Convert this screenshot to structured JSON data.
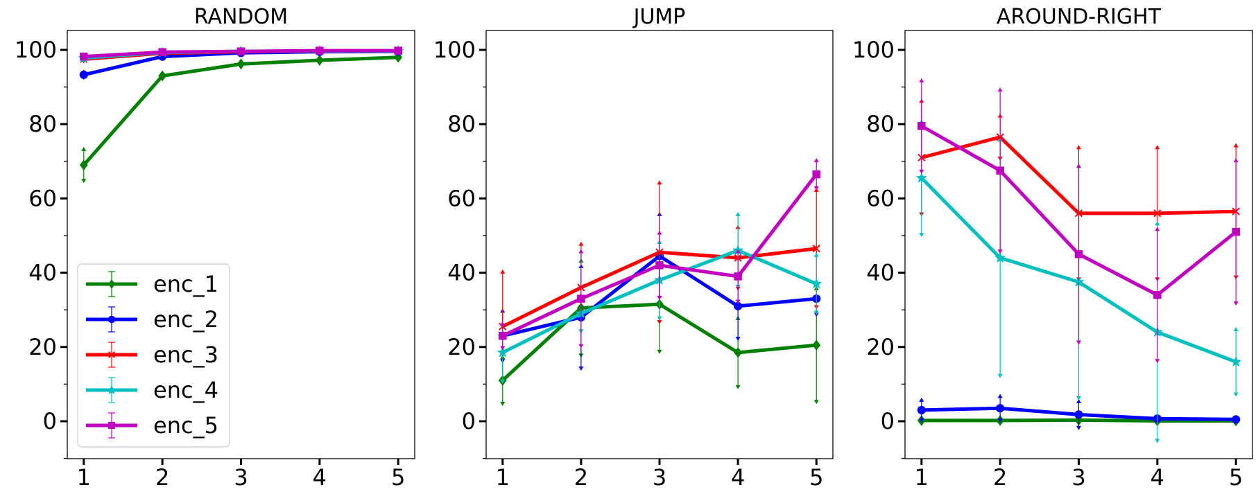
{
  "chart_data": [
    {
      "type": "line",
      "title": "RANDOM",
      "x": [
        1,
        2,
        3,
        4,
        5
      ],
      "xticks": [
        "1",
        "2",
        "3",
        "4",
        "5"
      ],
      "yticks": [
        "0",
        "20",
        "40",
        "60",
        "80",
        "100"
      ],
      "ylim": [
        -10,
        105
      ],
      "legend": "lower-left",
      "series": [
        {
          "name": "enc_1",
          "color": "#008000",
          "marker": "diamond",
          "values": [
            69,
            93,
            96.2,
            97.2,
            98
          ],
          "err": [
            4.5,
            1,
            0.5,
            0.5,
            0.4
          ]
        },
        {
          "name": "enc_2",
          "color": "#0000ff",
          "marker": "circle",
          "values": [
            93.3,
            98.2,
            99.2,
            99.5,
            99.6
          ],
          "err": [
            1,
            0.6,
            0.3,
            0.2,
            0.2
          ]
        },
        {
          "name": "enc_3",
          "color": "#ff0000",
          "marker": "x",
          "values": [
            97.5,
            99.1,
            99.5,
            99.7,
            99.7
          ],
          "err": [
            0.8,
            0.3,
            0.2,
            0.2,
            0.2
          ]
        },
        {
          "name": "enc_4",
          "color": "#00bfbf",
          "marker": "star",
          "values": [
            97.8,
            99.3,
            99.6,
            99.7,
            99.7
          ],
          "err": [
            0.8,
            0.3,
            0.2,
            0.2,
            0.2
          ]
        },
        {
          "name": "enc_5",
          "color": "#bf00bf",
          "marker": "square",
          "values": [
            98.2,
            99.4,
            99.6,
            99.8,
            99.8
          ],
          "err": [
            0.8,
            0.3,
            0.2,
            0.2,
            0.2
          ]
        }
      ]
    },
    {
      "type": "line",
      "title": "JUMP",
      "x": [
        1,
        2,
        3,
        4,
        5
      ],
      "xticks": [
        "1",
        "2",
        "3",
        "4",
        "5"
      ],
      "yticks": [
        "0",
        "20",
        "40",
        "60",
        "80",
        "100"
      ],
      "ylim": [
        -10,
        105
      ],
      "series": [
        {
          "name": "enc_1",
          "color": "#008000",
          "marker": "diamond",
          "values": [
            11,
            30.5,
            31.5,
            18.5,
            20.5
          ],
          "err": [
            6.5,
            13,
            13,
            9.5,
            15.5
          ]
        },
        {
          "name": "enc_2",
          "color": "#0000ff",
          "marker": "circle",
          "values": [
            23,
            28,
            44.5,
            31,
            33
          ],
          "err": [
            7,
            14,
            11.5,
            9,
            4.5
          ]
        },
        {
          "name": "enc_3",
          "color": "#ff0000",
          "marker": "x",
          "values": [
            25.5,
            36,
            45.5,
            44,
            46.5
          ],
          "err": [
            15,
            12,
            19,
            8.5,
            16
          ]
        },
        {
          "name": "enc_4",
          "color": "#00bfbf",
          "marker": "star",
          "values": [
            18.5,
            29,
            38,
            46,
            37
          ],
          "err": [
            8,
            5,
            10.5,
            10,
            8
          ]
        },
        {
          "name": "enc_5",
          "color": "#bf00bf",
          "marker": "square",
          "values": [
            23,
            33,
            42,
            39,
            66.5
          ],
          "err": [
            3.5,
            13,
            9,
            7,
            4
          ]
        }
      ]
    },
    {
      "type": "line",
      "title": "AROUND-RIGHT",
      "x": [
        1,
        2,
        3,
        4,
        5
      ],
      "xticks": [
        "1",
        "2",
        "3",
        "4",
        "5"
      ],
      "yticks": [
        "0",
        "20",
        "40",
        "60",
        "80",
        "100"
      ],
      "ylim": [
        -10,
        105
      ],
      "series": [
        {
          "name": "enc_1",
          "color": "#008000",
          "marker": "diamond",
          "values": [
            0.2,
            0.2,
            0.3,
            0.1,
            0.1
          ],
          "err": [
            0.5,
            0.5,
            0.5,
            0.5,
            0.5
          ]
        },
        {
          "name": "enc_2",
          "color": "#0000ff",
          "marker": "circle",
          "values": [
            3,
            3.5,
            1.8,
            0.7,
            0.5
          ],
          "err": [
            3,
            3.5,
            3.8,
            0.7,
            0.5
          ]
        },
        {
          "name": "enc_3",
          "color": "#ff0000",
          "marker": "x",
          "values": [
            71,
            76.5,
            56,
            56,
            56.5
          ],
          "err": [
            15.5,
            6,
            18,
            18,
            18
          ]
        },
        {
          "name": "enc_4",
          "color": "#00bfbf",
          "marker": "star",
          "values": [
            65.5,
            44,
            37.5,
            24,
            16
          ],
          "err": [
            15.5,
            32,
            31.5,
            29.5,
            9
          ]
        },
        {
          "name": "enc_5",
          "color": "#bf00bf",
          "marker": "square",
          "values": [
            79.5,
            67.5,
            45,
            34,
            51
          ],
          "err": [
            12.5,
            22,
            24,
            18,
            19.5
          ]
        }
      ]
    }
  ]
}
